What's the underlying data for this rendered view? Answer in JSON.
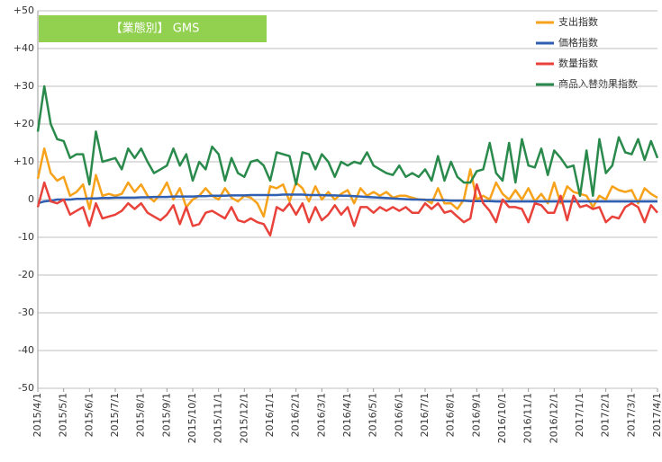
{
  "chart_data": {
    "type": "line",
    "title": "【業態別】 GMS",
    "legend": "upper right",
    "grid": true,
    "categories": [
      "2015/4/1",
      null,
      null,
      null,
      "2015/5/1",
      null,
      null,
      null,
      "2015/6/1",
      null,
      null,
      null,
      "2015/7/1",
      null,
      null,
      null,
      "2015/8/1",
      null,
      null,
      null,
      "2015/9/1",
      null,
      null,
      null,
      "2015/10/1",
      null,
      null,
      null,
      "2015/11/1",
      null,
      null,
      null,
      "2015/12/1",
      null,
      null,
      null,
      "2016/1/1",
      null,
      null,
      null,
      "2016/2/1",
      null,
      null,
      null,
      "2016/3/1",
      null,
      null,
      null,
      "2016/4/1",
      null,
      null,
      null,
      "2016/5/1",
      null,
      null,
      null,
      "2016/6/1",
      null,
      null,
      null,
      "2016/7/1",
      null,
      null,
      null,
      "2016/8/1",
      null,
      null,
      null,
      "2016/9/1",
      null,
      null,
      null,
      "2016/10/1",
      null,
      null,
      null,
      "2016/11/1",
      null,
      null,
      null,
      "2016/12/1",
      null,
      null,
      null,
      "2017/1/1",
      null,
      null,
      null,
      "2017/2/1",
      null,
      null,
      null,
      "2017/3/1",
      null,
      null,
      null,
      "2017/4/1"
    ],
    "ylim": [
      -50,
      50
    ],
    "yticks": [
      {
        "value": 50,
        "label": "+50"
      },
      {
        "value": 40,
        "label": "+40"
      },
      {
        "value": 30,
        "label": "+30"
      },
      {
        "value": 20,
        "label": "+20"
      },
      {
        "value": 10,
        "label": "+10"
      },
      0,
      -10,
      -20,
      -30,
      -40,
      -50
    ],
    "series": [
      {
        "name": "支出指数",
        "color": "#f7a21b",
        "values": [
          5.5,
          13.5,
          7,
          5,
          6,
          1,
          2,
          4,
          -2.5,
          6.5,
          1,
          1.5,
          1,
          1.5,
          4.5,
          2,
          4,
          1,
          -0.5,
          1.5,
          4.5,
          0,
          3,
          -2,
          0,
          1,
          3,
          1,
          0,
          3,
          0.5,
          -0.5,
          1,
          0.5,
          -1,
          -4.5,
          3.5,
          3,
          4,
          -0.5,
          4.5,
          3,
          -0.5,
          3.5,
          0,
          2,
          0,
          1.5,
          2.5,
          -1,
          3,
          1,
          2,
          1,
          2,
          0.5,
          1,
          1,
          0.5,
          0,
          0,
          -1,
          3,
          -1,
          -1,
          -2.5,
          0,
          8,
          0,
          1,
          0,
          4.5,
          1.5,
          0,
          2.5,
          0,
          3,
          -0.5,
          1.5,
          -1,
          4.5,
          -1,
          3.5,
          2,
          1.5,
          1,
          -2,
          1,
          0,
          3.5,
          2.5,
          2,
          2.5,
          -1,
          3,
          1.5,
          0.5
        ]
      },
      {
        "name": "価格指数",
        "color": "#2f5fb3",
        "values": [
          -1,
          -0.5,
          -0.3,
          0,
          0,
          0,
          0.2,
          0.2,
          0.3,
          0.3,
          0.4,
          0.4,
          0.5,
          0.5,
          0.5,
          0.5,
          0.6,
          0.6,
          0.7,
          0.7,
          0.7,
          0.8,
          0.8,
          0.8,
          0.8,
          0.9,
          0.9,
          1,
          1,
          1,
          1.1,
          1.1,
          1.1,
          1.2,
          1.2,
          1.2,
          1.2,
          1.2,
          1.3,
          1.3,
          1.3,
          1.3,
          1.2,
          1.2,
          1.2,
          1.1,
          1.1,
          1,
          1,
          0.9,
          0.8,
          0.7,
          0.6,
          0.5,
          0.4,
          0.3,
          0.2,
          0.1,
          0,
          0,
          -0.1,
          -0.1,
          -0.2,
          -0.2,
          -0.3,
          -0.3,
          -0.3,
          -0.4,
          -0.4,
          -0.4,
          -0.4,
          -0.5,
          -0.5,
          -0.5,
          -0.5,
          -0.5,
          -0.5,
          -0.5,
          -0.5,
          -0.5,
          -0.5,
          -0.5,
          -0.5,
          -0.5,
          -0.5,
          -0.5,
          -0.5,
          -0.5,
          -0.5,
          -0.5,
          -0.5,
          -0.5,
          -0.5,
          -0.5,
          -0.5,
          -0.5,
          -0.5
        ]
      },
      {
        "name": "数量指数",
        "color": "#e8423a",
        "values": [
          -2,
          4.5,
          -0.5,
          -1,
          0,
          -4,
          -3,
          -2,
          -7,
          -1,
          -5,
          -4.5,
          -4,
          -3,
          -1,
          -2.5,
          -1,
          -3.5,
          -4.5,
          -5.5,
          -4,
          -1.5,
          -6.5,
          -2,
          -7,
          -6.5,
          -3.5,
          -3,
          -4,
          -5,
          -2,
          -5.5,
          -6,
          -5,
          -6,
          -6.5,
          -9.5,
          -2,
          -3,
          -1,
          -4,
          -1,
          -6,
          -2,
          -5.5,
          -4,
          -1.5,
          -4,
          -2,
          -7,
          -2,
          -2,
          -3.5,
          -2,
          -3,
          -2,
          -3,
          -2,
          -3.5,
          -3.5,
          -1,
          -2.5,
          -1,
          -3.5,
          -3,
          -4.5,
          -6,
          -5,
          4,
          -1,
          -3,
          -6,
          0,
          -2,
          -2,
          -2.5,
          -6,
          -1,
          -1.5,
          -3.5,
          -3.5,
          1,
          -5.5,
          1,
          -2,
          -1.5,
          -2.5,
          -2,
          -6,
          -4.5,
          -5,
          -2,
          -1,
          -2,
          -6,
          -1.5,
          -3.5
        ]
      },
      {
        "name": "商品入替効果指数",
        "color": "#2a8a4c",
        "values": [
          18,
          30,
          20,
          16,
          15.5,
          11,
          12,
          12,
          4,
          18,
          10,
          10.5,
          11,
          8,
          13.5,
          11,
          13.5,
          10,
          7,
          8,
          9,
          13.5,
          9,
          12,
          5,
          10,
          8,
          14,
          12,
          5,
          11,
          7,
          6,
          10,
          10.5,
          9,
          5,
          12.5,
          12,
          11.5,
          4,
          12.5,
          12,
          8,
          12,
          10,
          6,
          10,
          9,
          10,
          9.5,
          12.5,
          9,
          8,
          7,
          6.5,
          9,
          6,
          7,
          6,
          8,
          5,
          11.5,
          5,
          10,
          6,
          4.5,
          4.5,
          7.5,
          8,
          15,
          7,
          5,
          15,
          4.5,
          16,
          9,
          8.5,
          13.5,
          6.5,
          13,
          11,
          8.5,
          9,
          1,
          13,
          1,
          16,
          7,
          9,
          16.5,
          12.5,
          12,
          16,
          10.5,
          15.5,
          11
        ]
      }
    ]
  }
}
